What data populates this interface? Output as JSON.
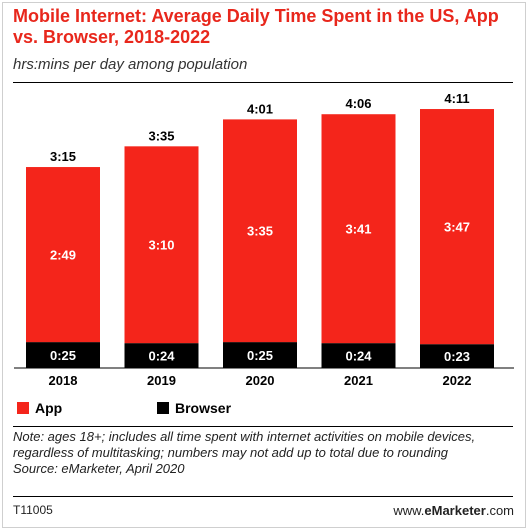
{
  "title": "Mobile Internet: Average Daily Time Spent in the US, App vs. Browser, 2018-2022",
  "subtitle": "hrs:mins per day among population",
  "colors": {
    "app": "#f4251b",
    "browser": "#000000",
    "title": "#e8271c"
  },
  "chart_data": {
    "type": "bar",
    "stacked": true,
    "categories": [
      "2018",
      "2019",
      "2020",
      "2021",
      "2022"
    ],
    "series": [
      {
        "name": "App",
        "values": [
          169,
          190,
          215,
          221,
          227
        ],
        "labels": [
          "2:49",
          "3:10",
          "3:35",
          "3:41",
          "3:47"
        ]
      },
      {
        "name": "Browser",
        "values": [
          25,
          24,
          25,
          24,
          23
        ],
        "labels": [
          "0:25",
          "0:24",
          "0:25",
          "0:24",
          "0:23"
        ]
      }
    ],
    "totals": [
      "3:15",
      "3:35",
      "4:01",
      "4:06",
      "4:11"
    ],
    "unit": "minutes per day",
    "ylim": [
      0,
      251
    ],
    "grid": false,
    "legend_position": "bottom-left"
  },
  "legend": {
    "app": "App",
    "browser": "Browser"
  },
  "note": "Note: ages 18+; includes all time spent with internet activities on mobile devices, regardless of multitasking; numbers may not add up to total due to rounding",
  "source": "Source: eMarketer, April 2020",
  "code": "T11005",
  "brand_prefix": "www.",
  "brand_name": "eMarketer",
  "brand_suffix": ".com"
}
